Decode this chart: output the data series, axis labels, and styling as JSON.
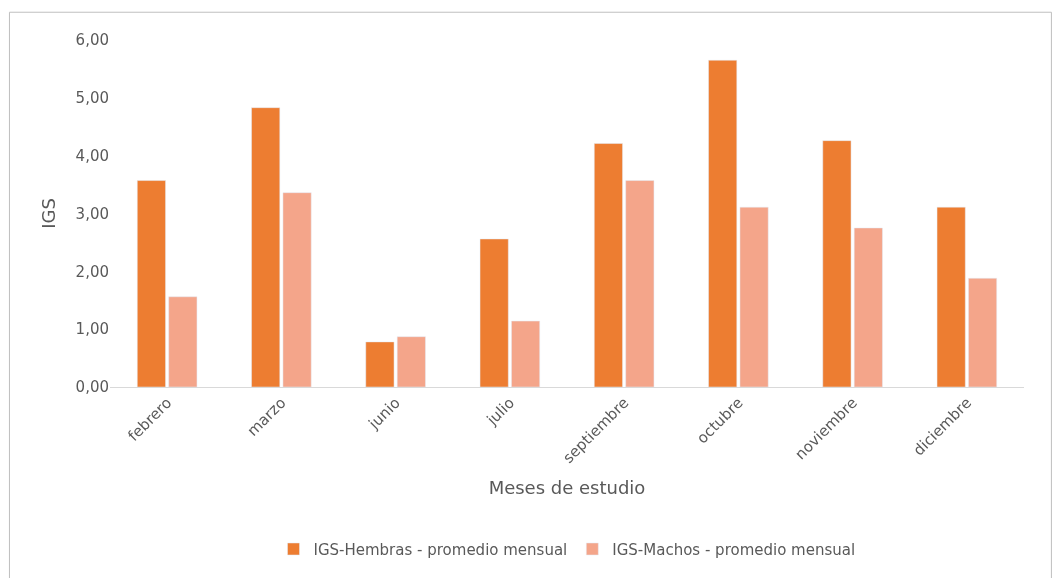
{
  "chart_data": {
    "type": "bar",
    "xlabel": "Meses de estudio",
    "ylabel": "IGS",
    "categories": [
      "febrero",
      "marzo",
      "junio",
      "julio",
      "septiembre",
      "octubre",
      "noviembre",
      "diciembre"
    ],
    "series": [
      {
        "name": "IGS-Hembras - promedio mensual",
        "color": "#ed7d31",
        "values": [
          3.57,
          4.83,
          0.78,
          2.56,
          4.21,
          5.65,
          4.26,
          3.11
        ]
      },
      {
        "name": "IGS-Machos - promedio mensual",
        "color": "#f4a58a",
        "values": [
          1.56,
          3.36,
          0.87,
          1.14,
          3.57,
          3.11,
          2.75,
          1.88
        ]
      }
    ],
    "ylim": [
      0,
      6
    ],
    "yticks": [
      {
        "value": 0,
        "label": "0,00"
      },
      {
        "value": 1,
        "label": "1,00"
      },
      {
        "value": 2,
        "label": "2,00"
      },
      {
        "value": 3,
        "label": "3,00"
      },
      {
        "value": 4,
        "label": "4,00"
      },
      {
        "value": 5,
        "label": "5,00"
      },
      {
        "value": 6,
        "label": "6,00"
      }
    ],
    "legend": "bottom"
  }
}
